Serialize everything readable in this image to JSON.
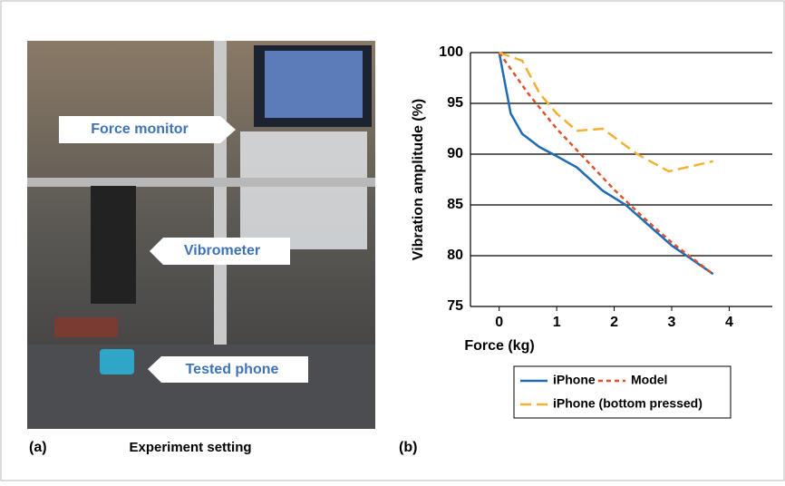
{
  "figure": {
    "panel_a_label": "(a)",
    "panel_a_caption": "Experiment setting",
    "panel_b_label": "(b)",
    "callouts": [
      "Force monitor",
      "Vibrometer",
      "Tested phone"
    ]
  },
  "chart_data": {
    "type": "line",
    "xlabel": "Force (kg)",
    "ylabel": "Vibration amplitude (%)",
    "xlim": [
      -0.5,
      4.75
    ],
    "ylim": [
      75,
      100
    ],
    "xticks": [
      0,
      1,
      2,
      3,
      4
    ],
    "yticks": [
      75,
      80,
      85,
      90,
      95,
      100
    ],
    "grid": true,
    "series": [
      {
        "name": "iPhone",
        "color": "#1f6bb5",
        "dash": "solid",
        "x": [
          0,
          0.1,
          0.2,
          0.4,
          0.7,
          1,
          1.35,
          1.8,
          2.2,
          2.6,
          3,
          3.72
        ],
        "values": [
          100,
          97,
          94,
          92,
          90.7,
          89.8,
          88.7,
          86.4,
          85,
          83,
          81,
          78.2
        ]
      },
      {
        "name": "Model",
        "color": "#e0522b",
        "dash": "short",
        "x": [
          0,
          0.5,
          1,
          1.5,
          2,
          2.5,
          3,
          3.72
        ],
        "values": [
          100,
          96,
          92.5,
          89.5,
          86.5,
          83.8,
          81.3,
          78.2
        ]
      },
      {
        "name": "iPhone (bottom pressed)",
        "color": "#f5b031",
        "dash": "long",
        "x": [
          0,
          0.4,
          0.7,
          1,
          1.35,
          1.8,
          2.4,
          2.95,
          3.72
        ],
        "values": [
          100,
          99.2,
          96,
          94,
          92.3,
          92.5,
          90,
          88.3,
          89.3
        ]
      }
    ]
  }
}
